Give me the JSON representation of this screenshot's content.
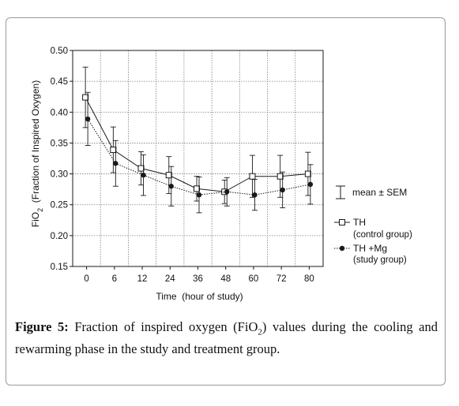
{
  "chart_data": {
    "type": "line",
    "x": [
      0,
      6,
      12,
      24,
      36,
      48,
      60,
      72,
      80
    ],
    "xlabel": "Time  (hour of study)",
    "ylabel": "FiO2  (Fraction of Inspired Oxygen)",
    "ylim": [
      0.15,
      0.5
    ],
    "y_ticks": [
      "0.15",
      "0.20",
      "0.25",
      "0.30",
      "0.35",
      "0.40",
      "0.45",
      "0.50"
    ],
    "x_ticks": [
      "0",
      "6",
      "12",
      "24",
      "36",
      "48",
      "60",
      "72",
      "80"
    ],
    "grid": true,
    "legend_position": "right",
    "series": [
      {
        "name": "TH",
        "sub": "(control group)",
        "marker": "open-square",
        "line_style": "solid",
        "values": [
          0.424,
          0.339,
          0.309,
          0.298,
          0.276,
          0.271,
          0.296,
          0.296,
          0.3
        ],
        "sem_low": [
          0.375,
          0.302,
          0.282,
          0.268,
          0.256,
          0.252,
          0.262,
          0.262,
          0.265
        ],
        "sem_high": [
          0.473,
          0.376,
          0.336,
          0.328,
          0.296,
          0.29,
          0.33,
          0.33,
          0.335
        ]
      },
      {
        "name": "TH +Mg",
        "sub": "(study group)",
        "marker": "filled-circle",
        "line_style": "dotted",
        "values": [
          0.389,
          0.317,
          0.298,
          0.28,
          0.266,
          0.271,
          0.266,
          0.274,
          0.283
        ],
        "sem_low": [
          0.346,
          0.28,
          0.265,
          0.248,
          0.237,
          0.248,
          0.241,
          0.245,
          0.251
        ],
        "sem_high": [
          0.432,
          0.354,
          0.331,
          0.312,
          0.295,
          0.294,
          0.291,
          0.303,
          0.315
        ]
      }
    ],
    "legend_errorbar_label": "mean ± SEM"
  },
  "caption": {
    "label": "Figure 5:",
    "text_before": " Fraction of inspired oxygen (FiO",
    "subscript": "2",
    "text_after": ") values during the cooling and rewarming phase in the study and treatment group."
  },
  "colors": {
    "line": "#1a1a1a",
    "grid": "#7f7f7f",
    "frame": "#9a9a9a"
  }
}
